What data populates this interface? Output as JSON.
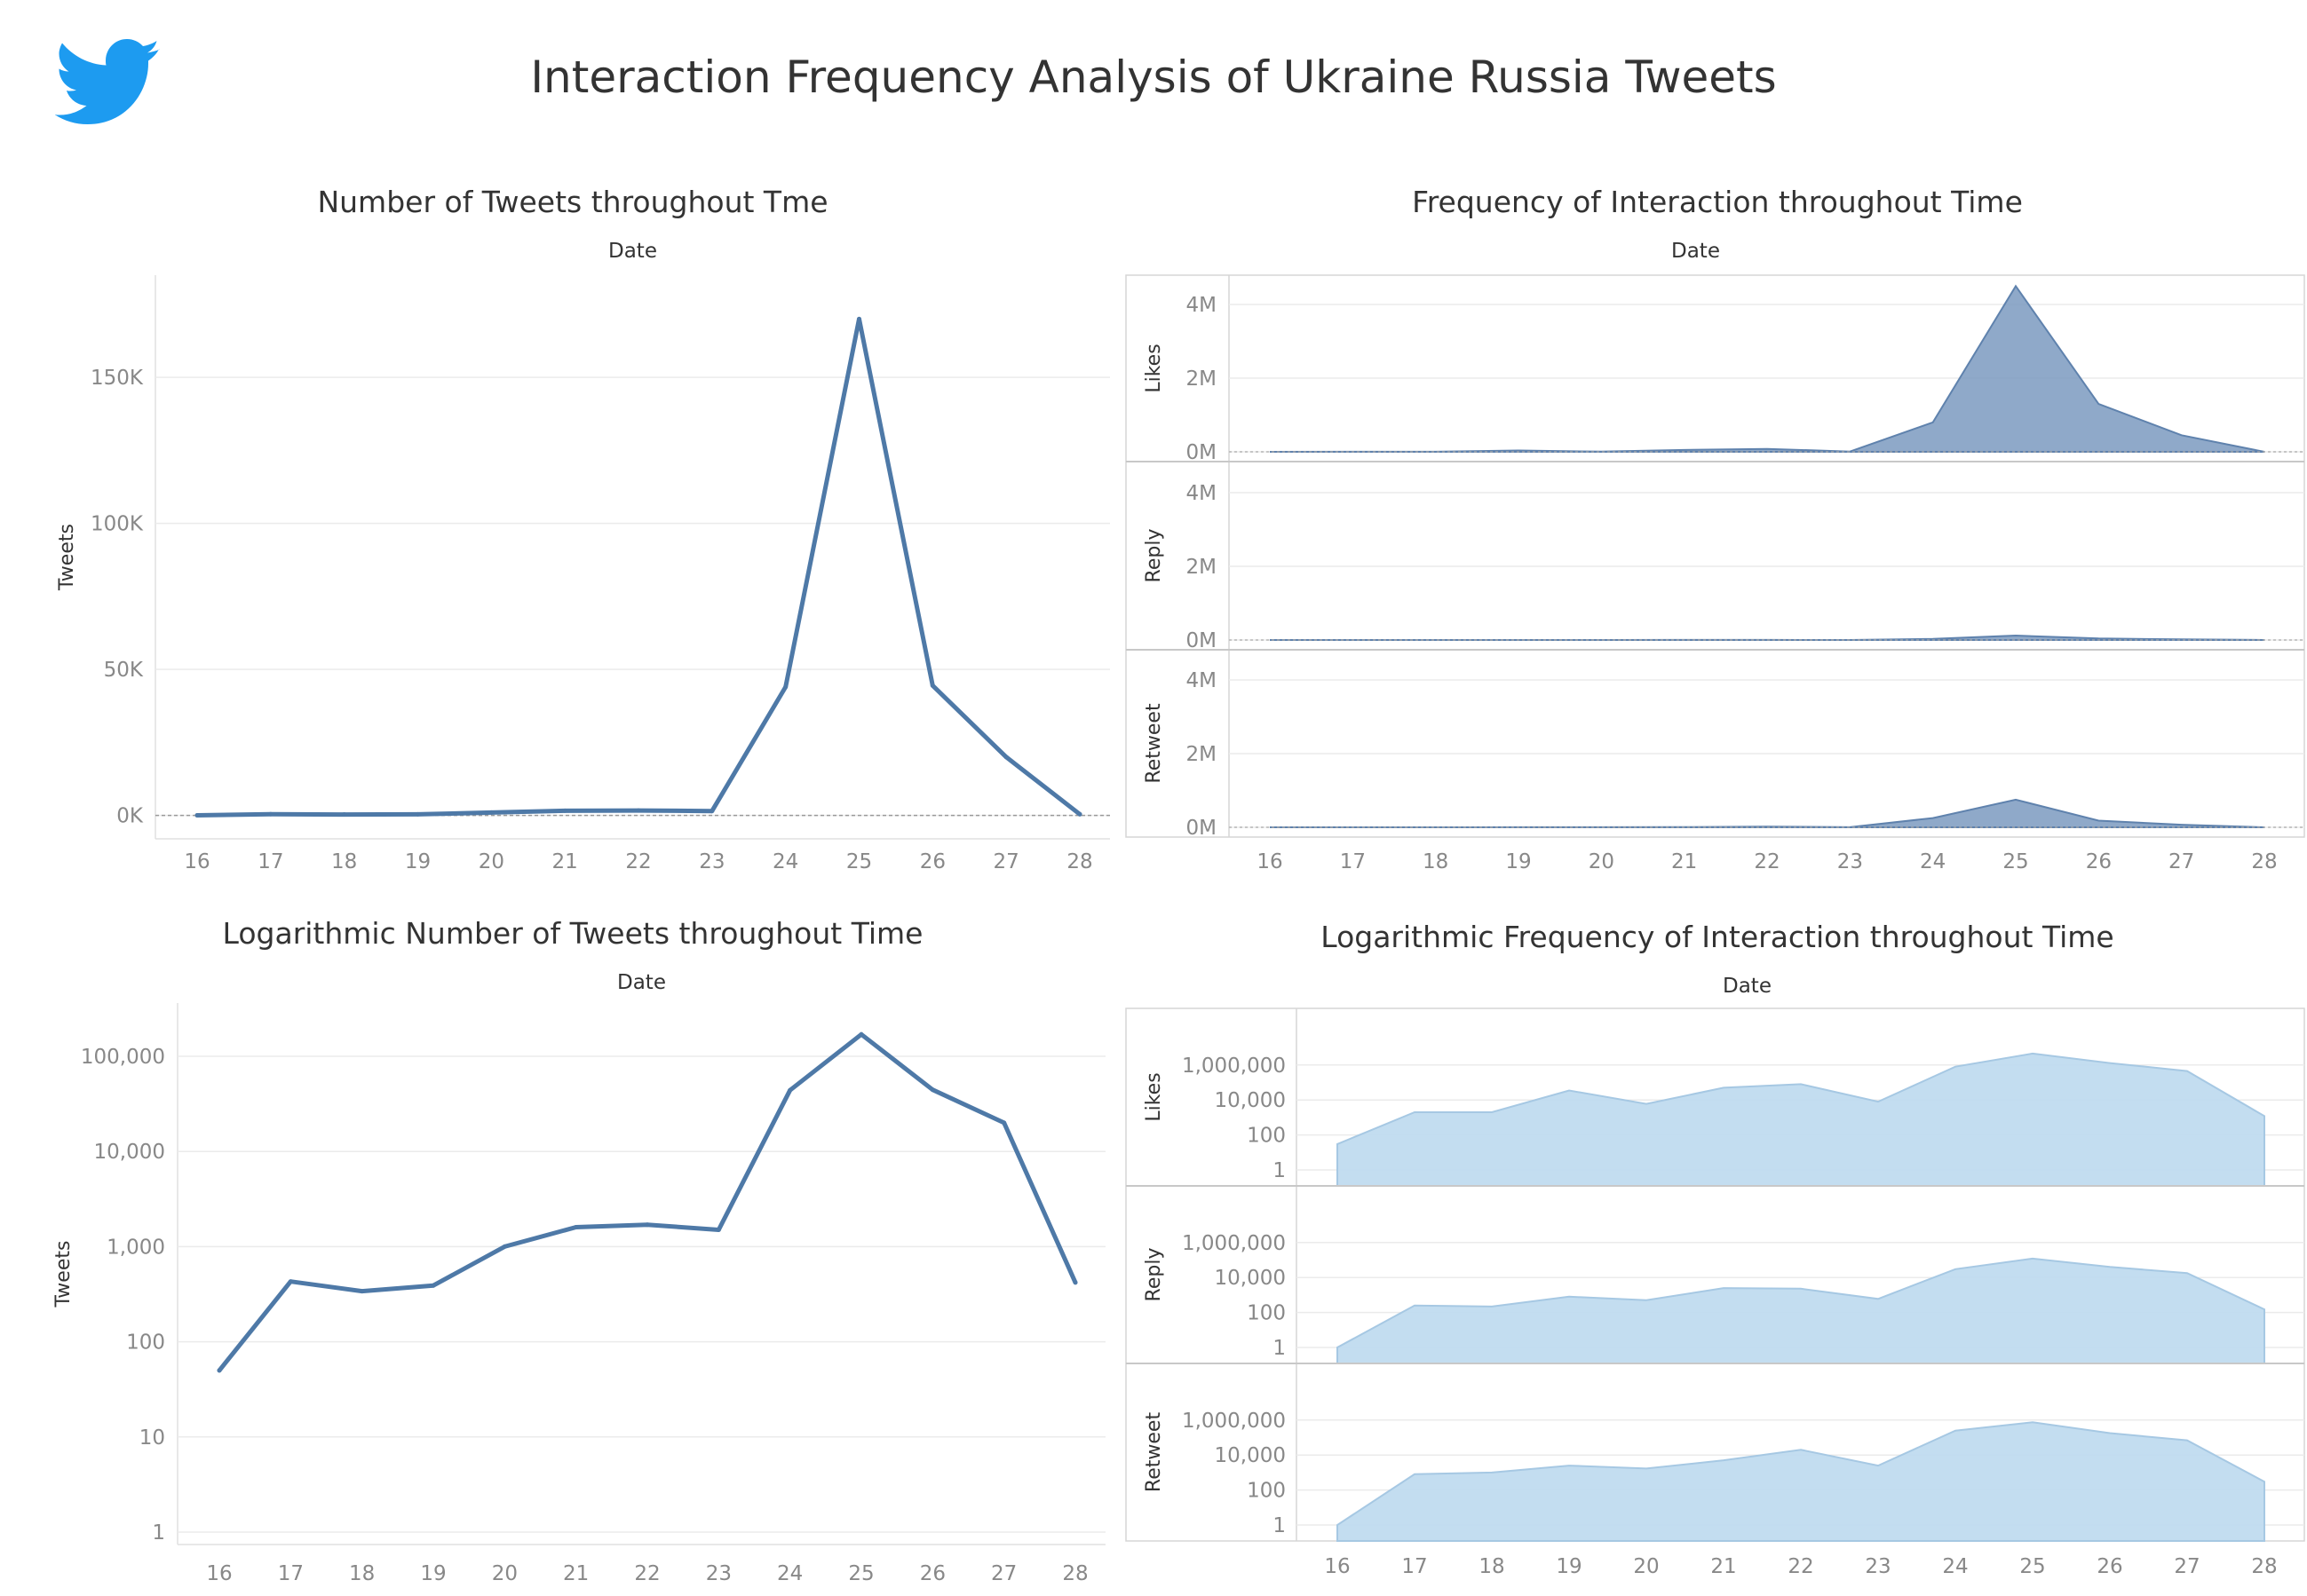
{
  "dashboard": {
    "title": "Interaction Frequency Analysis of Ukraine Russia Tweets",
    "logo_icon": "twitter-bird-icon"
  },
  "colors": {
    "line": "#4e79a7",
    "area_dark": "#7b9ac0",
    "area_light": "#c0dbef",
    "area_light_stroke": "#a6c8e3",
    "grid": "#ebebeb",
    "axis_text": "#888888",
    "title_text": "#333333"
  },
  "chart_data": [
    {
      "type": "line",
      "title": "Number of Tweets throughout Tme",
      "xlabel": "Date",
      "ylabel": "Tweets",
      "x": [
        16,
        17,
        18,
        19,
        20,
        21,
        22,
        23,
        24,
        25,
        26,
        27,
        28
      ],
      "values": [
        50,
        430,
        340,
        390,
        1000,
        1600,
        1700,
        1500,
        44000,
        170000,
        44500,
        20000,
        420
      ],
      "ylim": [
        -8000,
        185000
      ],
      "yticks": [
        0,
        50000,
        100000,
        150000
      ],
      "ytick_labels": [
        "0K",
        "50K",
        "100K",
        "150K"
      ],
      "zero_reference_line": true,
      "grid": true
    },
    {
      "type": "area",
      "title": "Frequency of Interaction throughout Time",
      "xlabel": "Date",
      "x": [
        16,
        17,
        18,
        19,
        20,
        21,
        22,
        23,
        24,
        25,
        26,
        27,
        28
      ],
      "ylim": [
        -100000,
        4900000
      ],
      "yticks": [
        0,
        2000000,
        4000000
      ],
      "ytick_labels": [
        "0M",
        "2M",
        "4M"
      ],
      "series": [
        {
          "name": "Likes",
          "values": [
            30,
            2000,
            2000,
            35000,
            6000,
            50000,
            80000,
            8000,
            800000,
            4500000,
            1300000,
            450000,
            1200
          ]
        },
        {
          "name": "Reply",
          "values": [
            1,
            250,
            220,
            800,
            500,
            2500,
            2300,
            600,
            30000,
            120000,
            40000,
            18000,
            150
          ]
        },
        {
          "name": "Retweet",
          "values": [
            1,
            800,
            1000,
            2500,
            1700,
            5000,
            20000,
            2500,
            250000,
            750000,
            180000,
            70000,
            300
          ]
        }
      ]
    },
    {
      "type": "line",
      "title": "Logarithmic Number of Tweets throughout Time",
      "xlabel": "Date",
      "ylabel": "Tweets",
      "scale": "log",
      "x": [
        16,
        17,
        18,
        19,
        20,
        21,
        22,
        23,
        24,
        25,
        26,
        27,
        28
      ],
      "values": [
        50,
        430,
        340,
        390,
        1000,
        1600,
        1700,
        1500,
        44000,
        170000,
        44500,
        20000,
        420
      ],
      "ylim": [
        1,
        250000
      ],
      "yticks": [
        1,
        10,
        100,
        1000,
        10000,
        100000
      ],
      "ytick_labels": [
        "1",
        "10",
        "100",
        "1,000",
        "10,000",
        "100,000"
      ],
      "grid": true
    },
    {
      "type": "area",
      "title": "Logarithmic Frequency of Interaction throughout Time",
      "xlabel": "Date",
      "scale": "log",
      "x": [
        16,
        17,
        18,
        19,
        20,
        21,
        22,
        23,
        24,
        25,
        26,
        27,
        28
      ],
      "ylim": [
        1,
        4000000
      ],
      "yticks": [
        1,
        100,
        10000,
        1000000
      ],
      "ytick_labels": [
        "1",
        "100",
        "10,000",
        "1,000,000"
      ],
      "series": [
        {
          "name": "Likes",
          "values": [
            30,
            2000,
            2000,
            35000,
            6000,
            50000,
            80000,
            8000,
            800000,
            4500000,
            1300000,
            450000,
            1200
          ]
        },
        {
          "name": "Reply",
          "values": [
            1,
            250,
            220,
            800,
            500,
            2500,
            2300,
            600,
            30000,
            120000,
            40000,
            18000,
            150
          ]
        },
        {
          "name": "Retweet",
          "values": [
            1,
            800,
            1000,
            2500,
            1700,
            5000,
            20000,
            2500,
            250000,
            750000,
            180000,
            70000,
            300
          ]
        }
      ]
    }
  ]
}
